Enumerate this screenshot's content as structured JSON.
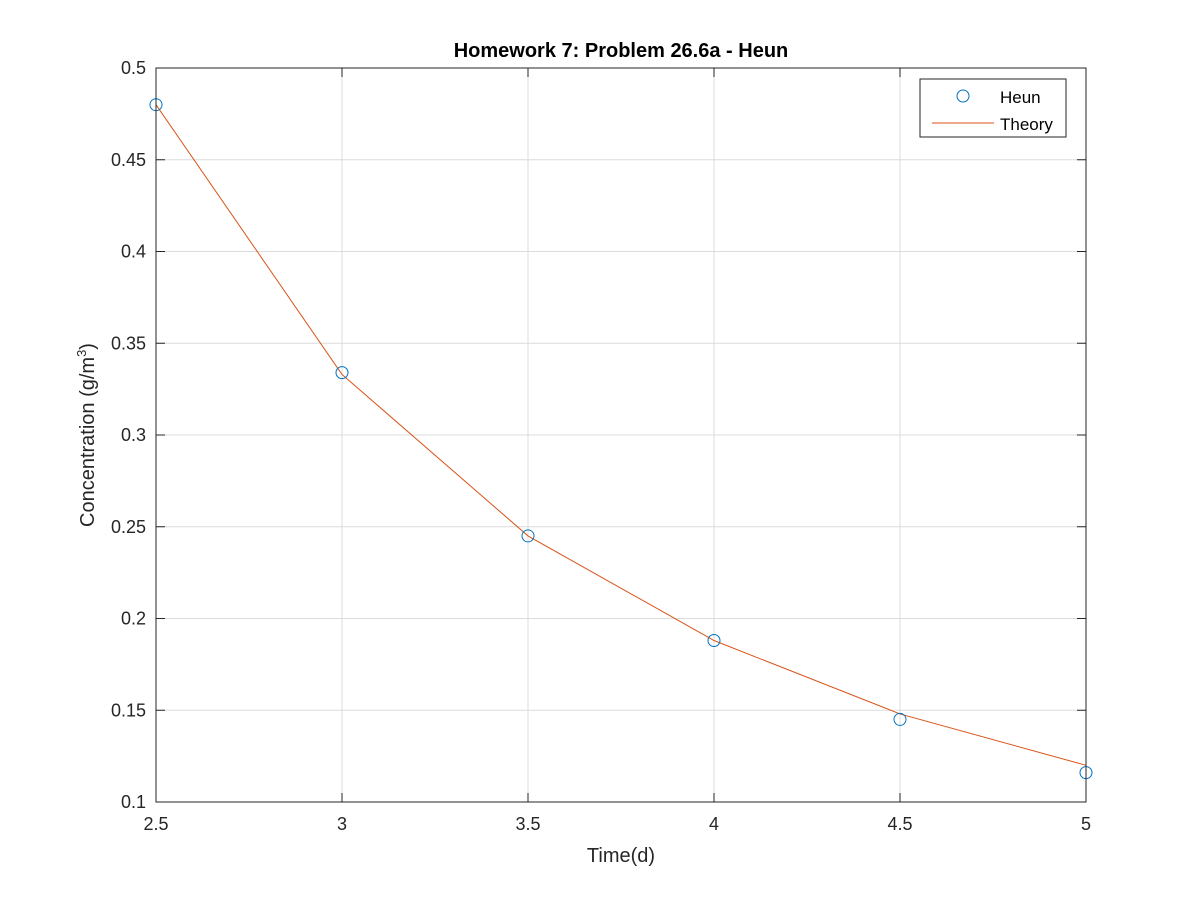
{
  "chart_data": {
    "type": "line",
    "title": "Homework 7: Problem 26.6a - Heun",
    "xlabel": "Time(d)",
    "ylabel_main": "Concentration (g/m",
    "ylabel_sup": "3",
    "ylabel_close": ")",
    "xlim": [
      2.5,
      5
    ],
    "ylim": [
      0.1,
      0.5
    ],
    "xticks": [
      2.5,
      3,
      3.5,
      4,
      4.5,
      5
    ],
    "xtick_labels": [
      "2.5",
      "3",
      "3.5",
      "4",
      "4.5",
      "5"
    ],
    "yticks": [
      0.1,
      0.15,
      0.2,
      0.25,
      0.3,
      0.35,
      0.4,
      0.45,
      0.5
    ],
    "ytick_labels": [
      "0.1",
      "0.15",
      "0.2",
      "0.25",
      "0.3",
      "0.35",
      "0.4",
      "0.45",
      "0.5"
    ],
    "grid": true,
    "legend_position": "top-right",
    "series": [
      {
        "name": "Heun",
        "style": "markers",
        "marker": "circle",
        "color": "#0072BD",
        "x": [
          2.5,
          3,
          3.5,
          4,
          4.5,
          5
        ],
        "y": [
          0.48,
          0.334,
          0.245,
          0.188,
          0.145,
          0.116
        ]
      },
      {
        "name": "Theory",
        "style": "line",
        "color": "#D95319",
        "x": [
          2.5,
          3,
          3.5,
          4,
          4.5,
          5
        ],
        "y": [
          0.48,
          0.333,
          0.245,
          0.188,
          0.148,
          0.12
        ]
      }
    ]
  }
}
